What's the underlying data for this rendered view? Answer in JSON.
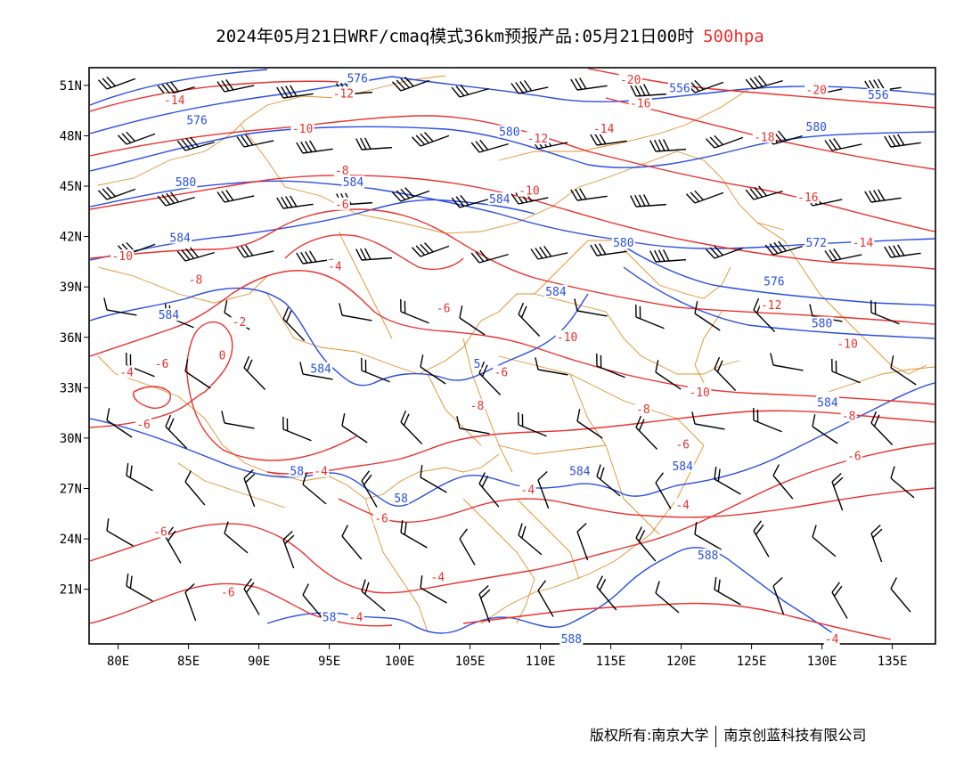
{
  "title": {
    "main": "2024年05月21日WRF/cmaq模式36km预报产品:05月21日00时",
    "level": "500hpa"
  },
  "colors": {
    "geopotential": "#2a4fe0",
    "temperature": "#e8322e",
    "borders": "#e0902a",
    "wind": "#000000"
  },
  "axes": {
    "lat_labels": [
      "51N",
      "48N",
      "45N",
      "42N",
      "39N",
      "36N",
      "33N",
      "30N",
      "27N",
      "24N",
      "21N"
    ],
    "lon_labels": [
      "80E",
      "85E",
      "90E",
      "95E",
      "100E",
      "105E",
      "110E",
      "115E",
      "120E",
      "125E",
      "130E",
      "135E"
    ]
  },
  "height_labels": [
    {
      "text": "576",
      "lon": 97,
      "lat": 51.4
    },
    {
      "text": "556",
      "lon": 119.9,
      "lat": 50.8
    },
    {
      "text": "556",
      "lon": 134,
      "lat": 50.4
    },
    {
      "text": "576",
      "lon": 85.6,
      "lat": 48.9
    },
    {
      "text": "580",
      "lon": 107.8,
      "lat": 48.2
    },
    {
      "text": "580",
      "lon": 129.6,
      "lat": 48.5
    },
    {
      "text": "584",
      "lon": 96.7,
      "lat": 45.2
    },
    {
      "text": "580",
      "lon": 84.8,
      "lat": 45.2
    },
    {
      "text": "584",
      "lon": 107.1,
      "lat": 44.2
    },
    {
      "text": "584",
      "lon": 84.4,
      "lat": 41.9
    },
    {
      "text": "580",
      "lon": 115.9,
      "lat": 41.6
    },
    {
      "text": "572",
      "lon": 129.6,
      "lat": 41.6
    },
    {
      "text": "576",
      "lon": 126.6,
      "lat": 39.3
    },
    {
      "text": "584",
      "lon": 83.6,
      "lat": 37.3
    },
    {
      "text": "584",
      "lon": 111.1,
      "lat": 38.7
    },
    {
      "text": "580",
      "lon": 130.0,
      "lat": 36.8
    },
    {
      "text": "584",
      "lon": 94.4,
      "lat": 34.1
    },
    {
      "text": "5",
      "lon": 105.5,
      "lat": 34.4
    },
    {
      "text": "584",
      "lon": 130.4,
      "lat": 32.1
    },
    {
      "text": "58",
      "lon": 92.7,
      "lat": 28.0
    },
    {
      "text": "584",
      "lon": 112.8,
      "lat": 28.0
    },
    {
      "text": "584",
      "lon": 120.1,
      "lat": 28.3
    },
    {
      "text": "58",
      "lon": 100.1,
      "lat": 26.4
    },
    {
      "text": "588",
      "lon": 121.9,
      "lat": 23.0
    },
    {
      "text": "58",
      "lon": 95.0,
      "lat": 19.3
    },
    {
      "text": "588",
      "lon": 112.2,
      "lat": 18.0
    }
  ],
  "temp_labels": [
    {
      "text": "-20",
      "lon": 116.4,
      "lat": 51.3
    },
    {
      "text": "-14",
      "lon": 84.0,
      "lat": 50.1
    },
    {
      "text": "-12",
      "lon": 96.0,
      "lat": 50.5
    },
    {
      "text": "-16",
      "lon": 117.1,
      "lat": 49.9
    },
    {
      "text": "-20",
      "lon": 129.6,
      "lat": 50.7
    },
    {
      "text": "-10",
      "lon": 93.1,
      "lat": 48.4
    },
    {
      "text": "-14",
      "lon": 114.5,
      "lat": 48.4
    },
    {
      "text": "-12",
      "lon": 109.8,
      "lat": 47.8
    },
    {
      "text": "-18",
      "lon": 125.9,
      "lat": 47.9
    },
    {
      "text": "-8",
      "lon": 95.9,
      "lat": 45.9
    },
    {
      "text": "-10",
      "lon": 109.2,
      "lat": 44.7
    },
    {
      "text": "-16",
      "lon": 129.0,
      "lat": 44.3
    },
    {
      "text": "-6",
      "lon": 95.9,
      "lat": 43.9
    },
    {
      "text": "-10",
      "lon": 80.3,
      "lat": 40.8
    },
    {
      "text": "-14",
      "lon": 132.9,
      "lat": 41.6
    },
    {
      "text": "-4",
      "lon": 95.4,
      "lat": 40.2
    },
    {
      "text": "-8",
      "lon": 85.5,
      "lat": 39.4
    },
    {
      "text": "-12",
      "lon": 126.4,
      "lat": 37.9
    },
    {
      "text": "-6",
      "lon": 103.1,
      "lat": 37.7
    },
    {
      "text": "-10",
      "lon": 111.9,
      "lat": 36.0
    },
    {
      "text": "-10",
      "lon": 131.8,
      "lat": 35.6
    },
    {
      "text": "-6",
      "lon": 83.1,
      "lat": 34.4
    },
    {
      "text": "-4",
      "lon": 80.6,
      "lat": 33.9
    },
    {
      "text": "0",
      "lon": 87.4,
      "lat": 34.9
    },
    {
      "text": "-2",
      "lon": 88.6,
      "lat": 36.9
    },
    {
      "text": "-6",
      "lon": 107.2,
      "lat": 33.9
    },
    {
      "text": "-10",
      "lon": 121.3,
      "lat": 32.7
    },
    {
      "text": "-8",
      "lon": 105.5,
      "lat": 31.9
    },
    {
      "text": "-8",
      "lon": 117.3,
      "lat": 31.7
    },
    {
      "text": "-8",
      "lon": 131.9,
      "lat": 31.3
    },
    {
      "text": "-6",
      "lon": 81.8,
      "lat": 30.8
    },
    {
      "text": "-6",
      "lon": 120.1,
      "lat": 29.6
    },
    {
      "text": "-6",
      "lon": 132.3,
      "lat": 28.9
    },
    {
      "text": "-4",
      "lon": 94.4,
      "lat": 28.0
    },
    {
      "text": "-4",
      "lon": 109.1,
      "lat": 26.9
    },
    {
      "text": "-4",
      "lon": 120.1,
      "lat": 26.0
    },
    {
      "text": "-6",
      "lon": 98.7,
      "lat": 25.2
    },
    {
      "text": "-6",
      "lon": 83.0,
      "lat": 24.4
    },
    {
      "text": "-4",
      "lon": 102.7,
      "lat": 21.7
    },
    {
      "text": "-6",
      "lon": 87.8,
      "lat": 20.8
    },
    {
      "text": "-4",
      "lon": 96.9,
      "lat": 19.3
    },
    {
      "text": "-4",
      "lon": 130.7,
      "lat": 18.0
    }
  ],
  "footer": {
    "left": "版权所有:南京大学",
    "right": "南京创蓝科技有限公司"
  }
}
